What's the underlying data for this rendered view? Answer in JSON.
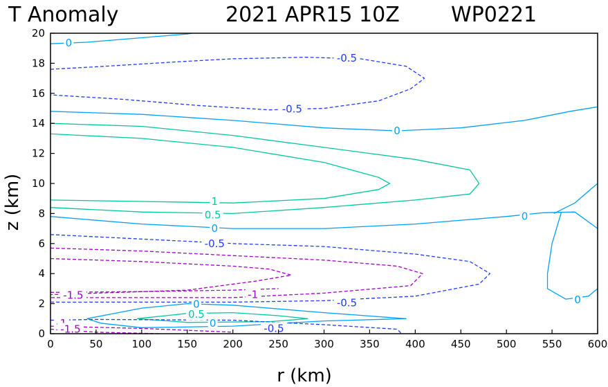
{
  "title": {
    "variable": "T Anomaly",
    "datetime": "2021 APR15 10Z",
    "storm_id": "WP0221"
  },
  "chart_data": {
    "type": "contour",
    "xlabel": "r (km)",
    "ylabel": "z (km)",
    "xlim": [
      0,
      600
    ],
    "ylim": [
      0,
      20
    ],
    "xticks": [
      0,
      50,
      100,
      150,
      200,
      250,
      300,
      350,
      400,
      450,
      500,
      550,
      600
    ],
    "yticks": [
      0,
      2,
      4,
      6,
      8,
      10,
      12,
      14,
      16,
      18,
      20
    ],
    "grid": false,
    "levels": [
      {
        "value": -1.5,
        "color": "#a000c8",
        "style": "dashed"
      },
      {
        "value": -1,
        "color": "#a000c8",
        "style": "dashed"
      },
      {
        "value": -0.5,
        "color": "#1e3cff",
        "style": "dashed"
      },
      {
        "value": 0,
        "color": "#00a0ff",
        "style": "solid"
      },
      {
        "value": 0.5,
        "color": "#00c8a0",
        "style": "solid"
      },
      {
        "value": 1,
        "color": "#00c8a0",
        "style": "solid"
      }
    ],
    "contours": [
      {
        "level": 0,
        "points": [
          [
            0,
            19.3
          ],
          [
            40,
            19.4
          ],
          [
            100,
            19.7
          ],
          [
            150,
            19.95
          ],
          [
            155,
            20
          ]
        ],
        "labels": [
          {
            "text": "0",
            "x": 20,
            "y": 19.35
          }
        ]
      },
      {
        "level": -0.5,
        "points": [
          [
            0,
            17.6
          ],
          [
            60,
            17.8
          ],
          [
            140,
            18.1
          ],
          [
            200,
            18.3
          ],
          [
            280,
            18.4
          ],
          [
            340,
            18.3
          ],
          [
            390,
            17.8
          ],
          [
            410,
            17.0
          ],
          [
            395,
            16.3
          ],
          [
            360,
            15.5
          ],
          [
            300,
            15.0
          ],
          [
            240,
            14.9
          ],
          [
            160,
            15.2
          ],
          [
            80,
            15.6
          ],
          [
            0,
            15.9
          ]
        ],
        "labels": [
          {
            "text": "-0.5",
            "x": 325,
            "y": 18.35
          },
          {
            "text": "-0.5",
            "x": 265,
            "y": 14.95
          }
        ]
      },
      {
        "level": 0,
        "points": [
          [
            0,
            14.8
          ],
          [
            100,
            14.6
          ],
          [
            200,
            14.2
          ],
          [
            300,
            13.7
          ],
          [
            380,
            13.5
          ],
          [
            450,
            13.7
          ],
          [
            520,
            14.2
          ],
          [
            570,
            14.8
          ],
          [
            600,
            15.1
          ]
        ],
        "labels": [
          {
            "text": "0",
            "x": 380,
            "y": 13.5
          }
        ]
      },
      {
        "level": 0.5,
        "points": [
          [
            0,
            14.0
          ],
          [
            100,
            13.8
          ],
          [
            200,
            13.2
          ],
          [
            300,
            12.4
          ],
          [
            400,
            11.6
          ],
          [
            460,
            10.9
          ],
          [
            470,
            10.0
          ],
          [
            460,
            9.3
          ],
          [
            400,
            8.9
          ],
          [
            300,
            8.4
          ],
          [
            200,
            8.0
          ],
          [
            100,
            8.1
          ],
          [
            0,
            8.4
          ]
        ],
        "labels": [
          {
            "text": "0.5",
            "x": 178,
            "y": 7.9
          }
        ]
      },
      {
        "level": 1,
        "points": [
          [
            0,
            13.3
          ],
          [
            100,
            13.0
          ],
          [
            200,
            12.4
          ],
          [
            300,
            11.4
          ],
          [
            360,
            10.4
          ],
          [
            372,
            10.0
          ],
          [
            360,
            9.6
          ],
          [
            300,
            9.0
          ],
          [
            200,
            8.7
          ],
          [
            100,
            8.8
          ],
          [
            0,
            8.9
          ]
        ],
        "labels": [
          {
            "text": "1",
            "x": 180,
            "y": 8.8
          }
        ]
      },
      {
        "level": 0,
        "points": [
          [
            0,
            7.8
          ],
          [
            100,
            7.3
          ],
          [
            200,
            7.0
          ],
          [
            300,
            7.0
          ],
          [
            400,
            7.3
          ],
          [
            500,
            7.8
          ],
          [
            540,
            8.05
          ],
          [
            575,
            8.1
          ],
          [
            600,
            7.0
          ]
        ],
        "labels": [
          {
            "text": "0",
            "x": 180,
            "y": 7.0
          },
          {
            "text": "0",
            "x": 520,
            "y": 7.8
          }
        ]
      },
      {
        "level": 0,
        "points": [
          [
            552,
            8.0
          ],
          [
            575,
            8.7
          ],
          [
            592,
            9.6
          ],
          [
            600,
            10.0
          ]
        ],
        "labels": []
      },
      {
        "level": 0,
        "points": [
          [
            560,
            8.05
          ],
          [
            550,
            6.0
          ],
          [
            545,
            4.0
          ],
          [
            545,
            3.0
          ],
          [
            565,
            2.3
          ],
          [
            590,
            2.5
          ],
          [
            600,
            3.0
          ]
        ],
        "labels": [
          {
            "text": "0",
            "x": 578,
            "y": 2.25
          }
        ]
      },
      {
        "level": -0.5,
        "points": [
          [
            0,
            6.6
          ],
          [
            100,
            6.3
          ],
          [
            200,
            6.0
          ],
          [
            300,
            5.8
          ],
          [
            400,
            5.3
          ],
          [
            460,
            4.8
          ],
          [
            482,
            4.0
          ],
          [
            470,
            3.3
          ],
          [
            400,
            2.5
          ],
          [
            300,
            2.2
          ],
          [
            200,
            2.1
          ],
          [
            100,
            2.1
          ],
          [
            0,
            2.1
          ]
        ],
        "labels": [
          {
            "text": "-0.5",
            "x": 180,
            "y": 6.0
          },
          {
            "text": "-0.5",
            "x": 325,
            "y": 2.05
          }
        ]
      },
      {
        "level": -1,
        "points": [
          [
            0,
            5.7
          ],
          [
            100,
            5.5
          ],
          [
            200,
            5.2
          ],
          [
            300,
            4.9
          ],
          [
            380,
            4.5
          ],
          [
            408,
            4.0
          ],
          [
            395,
            3.2
          ],
          [
            300,
            2.7
          ],
          [
            200,
            2.4
          ],
          [
            0,
            2.4
          ]
        ],
        "labels": [
          {
            "text": "-1",
            "x": 222,
            "y": 2.6
          }
        ]
      },
      {
        "level": -1,
        "points": [
          [
            0,
            5.0
          ],
          [
            100,
            4.8
          ],
          [
            200,
            4.5
          ],
          [
            240,
            4.3
          ],
          [
            264,
            3.9
          ],
          [
            225,
            3.5
          ],
          [
            150,
            2.9
          ],
          [
            0,
            2.6
          ]
        ],
        "labels": []
      },
      {
        "level": -1.5,
        "points": [
          [
            0,
            2.75
          ],
          [
            100,
            2.8
          ],
          [
            200,
            2.9
          ],
          [
            250,
            3.0
          ]
        ],
        "labels": [
          {
            "text": "-1.5",
            "x": 25,
            "y": 2.55
          }
        ]
      },
      {
        "level": 0,
        "points": [
          [
            40,
            1.0
          ],
          [
            100,
            1.7
          ],
          [
            150,
            2.0
          ],
          [
            200,
            1.9
          ],
          [
            300,
            1.4
          ],
          [
            390,
            1.0
          ],
          [
            300,
            0.85
          ],
          [
            200,
            0.5
          ],
          [
            100,
            0.4
          ],
          [
            55,
            0.7
          ],
          [
            40,
            1.0
          ]
        ],
        "labels": [
          {
            "text": "0",
            "x": 160,
            "y": 1.95
          },
          {
            "text": "0",
            "x": 178,
            "y": 0.7
          }
        ]
      },
      {
        "level": 0.5,
        "points": [
          [
            95,
            1.0
          ],
          [
            150,
            1.35
          ],
          [
            200,
            1.4
          ],
          [
            250,
            1.2
          ],
          [
            282,
            1.0
          ],
          [
            240,
            0.8
          ],
          [
            150,
            0.75
          ],
          [
            95,
            1.0
          ]
        ],
        "labels": [
          {
            "text": "0.5",
            "x": 160,
            "y": 1.3
          }
        ]
      },
      {
        "level": -0.5,
        "points": [
          [
            0,
            0.9
          ],
          [
            50,
            0.95
          ],
          [
            200,
            0.9
          ],
          [
            300,
            0.6
          ],
          [
            380,
            0.3
          ],
          [
            385,
            0.0
          ]
        ],
        "labels": [
          {
            "text": "-0.5",
            "x": 245,
            "y": 0.35
          }
        ]
      },
      {
        "level": -1,
        "points": [
          [
            0,
            0.5
          ],
          [
            100,
            0.35
          ],
          [
            200,
            0.1
          ]
        ],
        "labels": []
      },
      {
        "level": -1.5,
        "points": [
          [
            0,
            0.3
          ],
          [
            50,
            0.1
          ],
          [
            120,
            0.0
          ]
        ],
        "labels": [
          {
            "text": "-1",
            "x": 12,
            "y": 0.7
          },
          {
            "text": "-1.5",
            "x": 22,
            "y": 0.3
          }
        ]
      }
    ]
  }
}
